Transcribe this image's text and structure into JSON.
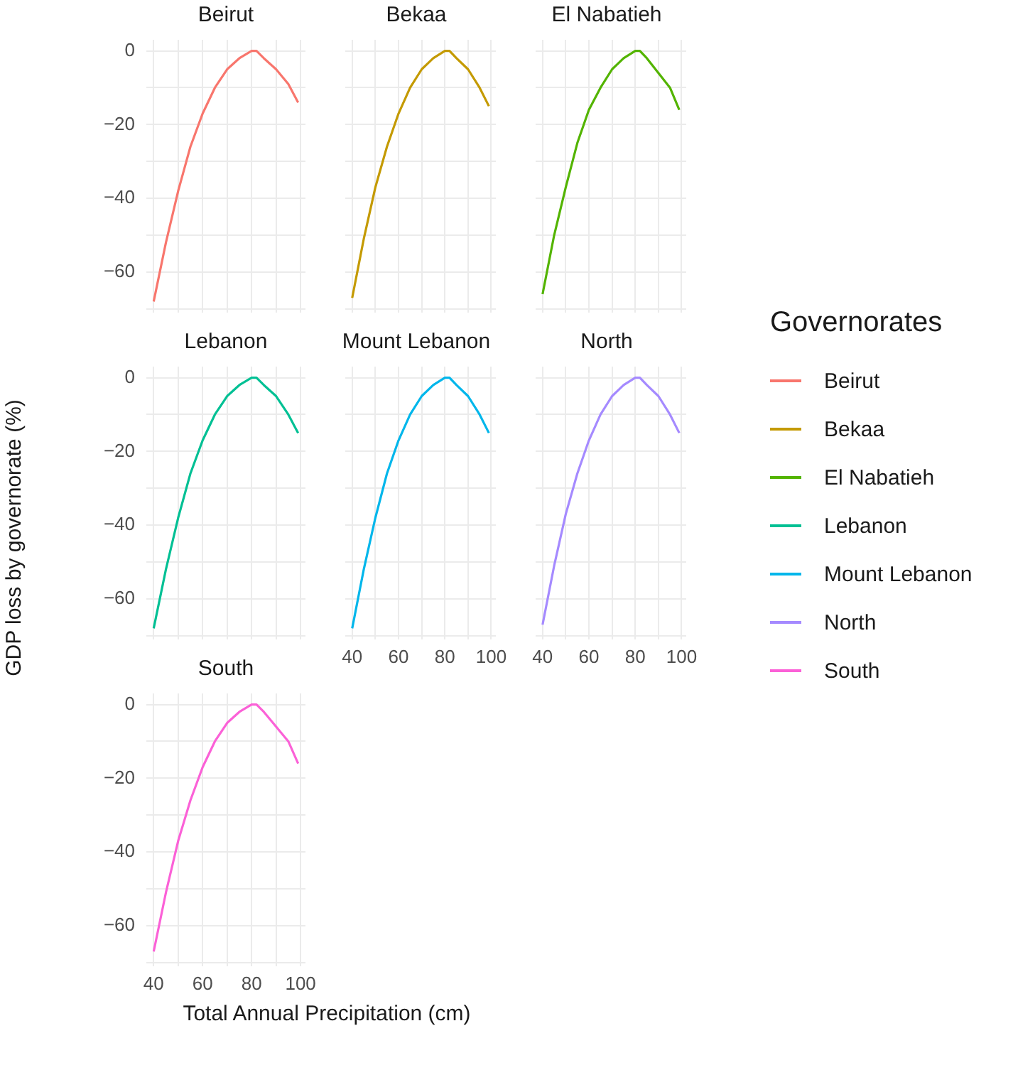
{
  "chart_data": [
    {
      "type": "line",
      "title": "Beirut",
      "ylabel": "GDP loss by governorate (%)",
      "legend_title": "Governorates",
      "legend": "right",
      "grid": true,
      "tick_labels": "y",
      "x": [
        40,
        45,
        50,
        55,
        60,
        65,
        70,
        75,
        80,
        82,
        85,
        90,
        95,
        99
      ],
      "xlim": [
        37,
        102
      ],
      "ylim": [
        -71,
        3
      ],
      "xticks": [
        40,
        {
          "value": 50,
          "label": null
        },
        60,
        {
          "value": 70,
          "label": null
        },
        80,
        {
          "value": 90,
          "label": null
        },
        100
      ],
      "yticks": [
        {
          "value": -70,
          "label": null
        },
        -60,
        {
          "value": -50,
          "label": null
        },
        -40,
        {
          "value": -30,
          "label": null
        },
        -20,
        {
          "value": -10,
          "label": null
        },
        0
      ],
      "series": [
        {
          "name": "Beirut",
          "color": "#f8766d",
          "values": [
            -68,
            -52,
            -38,
            -26,
            -17,
            -10,
            -5,
            -2,
            0,
            0,
            -2,
            -5,
            -9,
            -14
          ]
        }
      ]
    },
    {
      "type": "line",
      "title": "Bekaa",
      "legend": "right",
      "grid": true,
      "tick_labels": false,
      "x": [
        40,
        45,
        50,
        55,
        60,
        65,
        70,
        75,
        80,
        82,
        85,
        90,
        95,
        99
      ],
      "xlim": [
        37,
        102
      ],
      "ylim": [
        -71,
        3
      ],
      "xticks": [
        40,
        {
          "value": 50,
          "label": null
        },
        60,
        {
          "value": 70,
          "label": null
        },
        80,
        {
          "value": 90,
          "label": null
        },
        100
      ],
      "yticks": [
        {
          "value": -70,
          "label": null
        },
        -60,
        {
          "value": -50,
          "label": null
        },
        -40,
        {
          "value": -30,
          "label": null
        },
        -20,
        {
          "value": -10,
          "label": null
        },
        0
      ],
      "series": [
        {
          "name": "Bekaa",
          "color": "#c49a00",
          "values": [
            -67,
            -51,
            -37,
            -26,
            -17,
            -10,
            -5,
            -2,
            0,
            0,
            -2,
            -5,
            -10,
            -15
          ]
        }
      ]
    },
    {
      "type": "line",
      "title": "El Nabatieh",
      "legend": "right",
      "grid": true,
      "tick_labels": false,
      "x": [
        40,
        45,
        50,
        55,
        60,
        65,
        70,
        75,
        80,
        82,
        85,
        90,
        95,
        99
      ],
      "xlim": [
        37,
        102
      ],
      "ylim": [
        -71,
        3
      ],
      "xticks": [
        40,
        {
          "value": 50,
          "label": null
        },
        60,
        {
          "value": 70,
          "label": null
        },
        80,
        {
          "value": 90,
          "label": null
        },
        100
      ],
      "yticks": [
        {
          "value": -70,
          "label": null
        },
        -60,
        {
          "value": -50,
          "label": null
        },
        -40,
        {
          "value": -30,
          "label": null
        },
        -20,
        {
          "value": -10,
          "label": null
        },
        0
      ],
      "series": [
        {
          "name": "El Nabatieh",
          "color": "#53b400",
          "values": [
            -66,
            -50,
            -37,
            -25,
            -16,
            -10,
            -5,
            -2,
            0,
            0,
            -2,
            -6,
            -10,
            -16
          ]
        }
      ]
    },
    {
      "type": "line",
      "title": "Lebanon",
      "legend": "right",
      "grid": true,
      "tick_labels": "y",
      "x": [
        40,
        45,
        50,
        55,
        60,
        65,
        70,
        75,
        80,
        82,
        85,
        90,
        95,
        99
      ],
      "xlim": [
        37,
        102
      ],
      "ylim": [
        -71,
        3
      ],
      "xticks": [
        40,
        {
          "value": 50,
          "label": null
        },
        60,
        {
          "value": 70,
          "label": null
        },
        80,
        {
          "value": 90,
          "label": null
        },
        100
      ],
      "yticks": [
        {
          "value": -70,
          "label": null
        },
        -60,
        {
          "value": -50,
          "label": null
        },
        -40,
        {
          "value": -30,
          "label": null
        },
        -20,
        {
          "value": -10,
          "label": null
        },
        0
      ],
      "series": [
        {
          "name": "Lebanon",
          "color": "#00c094",
          "values": [
            -68,
            -52,
            -38,
            -26,
            -17,
            -10,
            -5,
            -2,
            0,
            0,
            -2,
            -5,
            -10,
            -15
          ]
        }
      ]
    },
    {
      "type": "line",
      "title": "Mount Lebanon",
      "legend": "right",
      "grid": true,
      "tick_labels": "x",
      "x": [
        40,
        45,
        50,
        55,
        60,
        65,
        70,
        75,
        80,
        82,
        85,
        90,
        95,
        99
      ],
      "xlim": [
        37,
        102
      ],
      "ylim": [
        -71,
        3
      ],
      "xticks": [
        40,
        {
          "value": 50,
          "label": null
        },
        60,
        {
          "value": 70,
          "label": null
        },
        80,
        {
          "value": 90,
          "label": null
        },
        100
      ],
      "yticks": [
        {
          "value": -70,
          "label": null
        },
        -60,
        {
          "value": -50,
          "label": null
        },
        -40,
        {
          "value": -30,
          "label": null
        },
        -20,
        {
          "value": -10,
          "label": null
        },
        0
      ],
      "series": [
        {
          "name": "Mount Lebanon",
          "color": "#00b6eb",
          "values": [
            -68,
            -52,
            -38,
            -26,
            -17,
            -10,
            -5,
            -2,
            0,
            0,
            -2,
            -5,
            -10,
            -15
          ]
        }
      ]
    },
    {
      "type": "line",
      "title": "North",
      "legend": "right",
      "grid": true,
      "tick_labels": "x",
      "x": [
        40,
        45,
        50,
        55,
        60,
        65,
        70,
        75,
        80,
        82,
        85,
        90,
        95,
        99
      ],
      "xlim": [
        37,
        102
      ],
      "ylim": [
        -71,
        3
      ],
      "xticks": [
        40,
        {
          "value": 50,
          "label": null
        },
        60,
        {
          "value": 70,
          "label": null
        },
        80,
        {
          "value": 90,
          "label": null
        },
        100
      ],
      "yticks": [
        {
          "value": -70,
          "label": null
        },
        -60,
        {
          "value": -50,
          "label": null
        },
        -40,
        {
          "value": -30,
          "label": null
        },
        -20,
        {
          "value": -10,
          "label": null
        },
        0
      ],
      "series": [
        {
          "name": "North",
          "color": "#a58aff",
          "values": [
            -67,
            -51,
            -37,
            -26,
            -17,
            -10,
            -5,
            -2,
            0,
            0,
            -2,
            -5,
            -10,
            -15
          ]
        }
      ]
    },
    {
      "type": "line",
      "title": "South",
      "xlabel": "Total Annual Precipitation (cm)",
      "legend": "right",
      "grid": true,
      "x": [
        40,
        45,
        50,
        55,
        60,
        65,
        70,
        75,
        80,
        82,
        85,
        90,
        95,
        99
      ],
      "xlim": [
        37,
        102
      ],
      "ylim": [
        -71,
        3
      ],
      "xticks": [
        40,
        {
          "value": 50,
          "label": null
        },
        60,
        {
          "value": 70,
          "label": null
        },
        80,
        {
          "value": 90,
          "label": null
        },
        100
      ],
      "yticks": [
        {
          "value": -70,
          "label": null
        },
        -60,
        {
          "value": -50,
          "label": null
        },
        -40,
        {
          "value": -30,
          "label": null
        },
        -20,
        {
          "value": -10,
          "label": null
        },
        0
      ],
      "series": [
        {
          "name": "South",
          "color": "#fb61d7",
          "values": [
            -67,
            -51,
            -37,
            -26,
            -17,
            -10,
            -5,
            -2,
            0,
            0,
            -2,
            -6,
            -10,
            -16
          ]
        }
      ]
    }
  ]
}
